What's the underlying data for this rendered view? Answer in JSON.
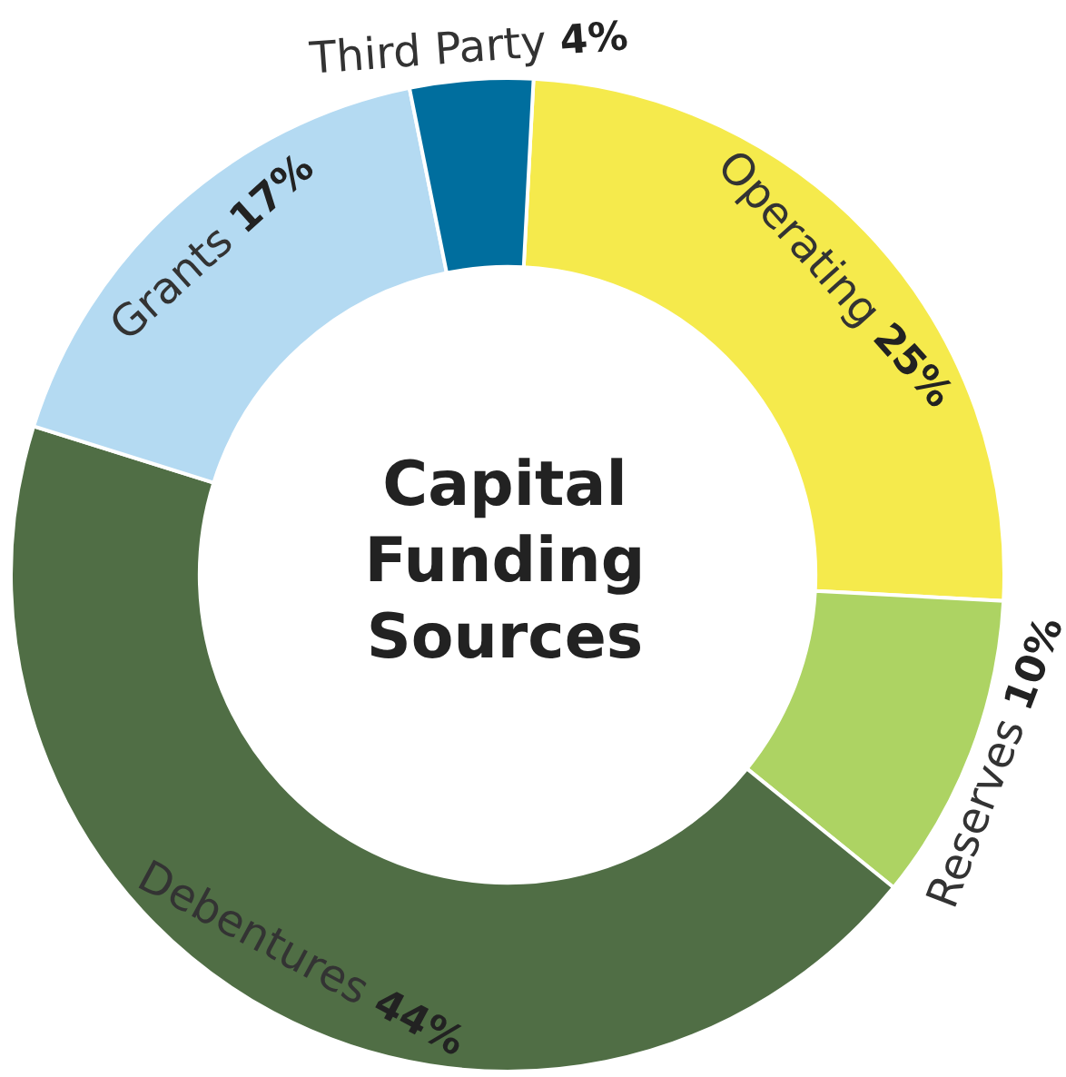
{
  "chart_data": {
    "type": "donut",
    "title": "Capital Funding Sources",
    "categories": [
      "Operating",
      "Reserves",
      "Debentures",
      "Grants",
      "Third Party"
    ],
    "values": [
      25,
      10,
      44,
      17,
      4
    ],
    "value_labels": [
      "25%",
      "10%",
      "44%",
      "17%",
      "4%"
    ],
    "colors": [
      "#f5ea4c",
      "#add363",
      "#506e45",
      "#b4daf2",
      "#006e9e"
    ],
    "legend": false
  }
}
